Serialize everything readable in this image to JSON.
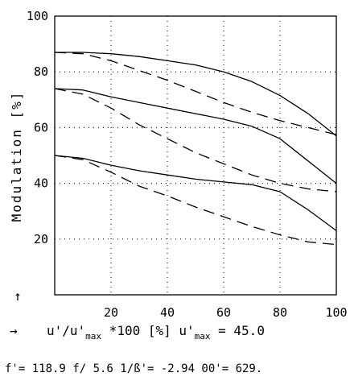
{
  "chart_data": {
    "type": "line",
    "xlim": [
      0,
      100
    ],
    "ylim": [
      0,
      100
    ],
    "x_ticks": [
      20,
      40,
      60,
      80,
      100
    ],
    "y_ticks": [
      20,
      40,
      60,
      80,
      100
    ],
    "grid": true,
    "ylabel": "Modulation [%]",
    "ylabel_arrow": "↑",
    "xlabel_arrow": "→",
    "xlabel_main": "u'/u'",
    "xlabel_sub": "max",
    "xlabel_rest": " *100 [%] u'",
    "xlabel_sub2": "max",
    "xlabel_value": " = 45.0",
    "footer": "f'= 118.9  f/ 5.6  1/ß'= -2.94  00'= 629.",
    "series": [
      {
        "style": "solid",
        "x": [
          0,
          10,
          20,
          30,
          40,
          50,
          60,
          70,
          80,
          90,
          100
        ],
        "y": [
          87,
          87,
          86.5,
          85.5,
          84,
          82.5,
          80,
          76.5,
          71.5,
          65,
          57
        ]
      },
      {
        "style": "dashed",
        "x": [
          0,
          10,
          20,
          30,
          40,
          50,
          60,
          70,
          80,
          90,
          100
        ],
        "y": [
          87,
          86.5,
          84,
          80.5,
          77,
          73,
          69,
          65.5,
          62.5,
          60,
          57.5
        ]
      },
      {
        "style": "solid",
        "x": [
          0,
          10,
          20,
          30,
          40,
          50,
          60,
          70,
          80,
          90,
          100
        ],
        "y": [
          74,
          73.5,
          71,
          69,
          67,
          65,
          63,
          60.5,
          56,
          48,
          40
        ]
      },
      {
        "style": "dashed",
        "x": [
          0,
          10,
          20,
          30,
          40,
          50,
          60,
          70,
          80,
          90,
          100
        ],
        "y": [
          74,
          72,
          67,
          61,
          56,
          51,
          47,
          43,
          40,
          38,
          37
        ]
      },
      {
        "style": "solid",
        "x": [
          0,
          10,
          20,
          30,
          40,
          50,
          60,
          70,
          80,
          90,
          100
        ],
        "y": [
          50,
          49,
          46.5,
          44.5,
          43,
          41.5,
          40.5,
          39.5,
          37,
          30.5,
          23
        ]
      },
      {
        "style": "dashed",
        "x": [
          0,
          10,
          20,
          30,
          40,
          50,
          60,
          70,
          80,
          90,
          100
        ],
        "y": [
          50,
          48.5,
          44,
          39,
          35.5,
          31.5,
          28,
          24.5,
          21.5,
          19,
          18
        ]
      }
    ]
  }
}
